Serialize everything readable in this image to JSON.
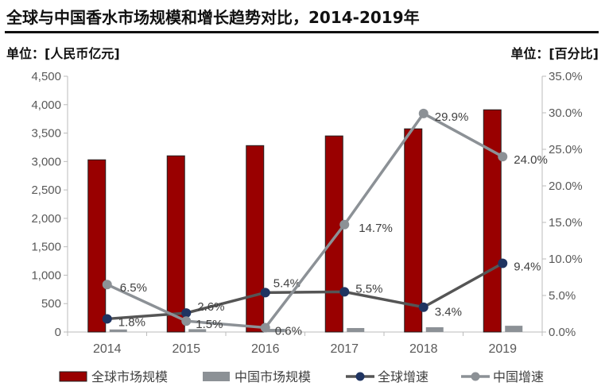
{
  "chart_data": {
    "type": "bar+line",
    "title": "全球与中国香水市场规模和增长趋势对比，2014-2019年",
    "ylabel_left": "单位：[人民币亿元]",
    "ylabel_right": "单位：[百分比]",
    "categories": [
      "2014",
      "2015",
      "2016",
      "2017",
      "2018",
      "2019"
    ],
    "ylim_left": [
      0,
      4500
    ],
    "left_ticks": [
      "0",
      "500",
      "1,000",
      "1,500",
      "2,000",
      "2,500",
      "3,000",
      "3,500",
      "4,000",
      "4,500"
    ],
    "ylim_right": [
      0,
      35
    ],
    "right_ticks": [
      "0.0%",
      "5.0%",
      "10.0%",
      "15.0%",
      "20.0%",
      "25.0%",
      "30.0%",
      "35.0%"
    ],
    "series": [
      {
        "name": "全球市场规模",
        "type": "bar",
        "axis": "left",
        "color": "#990000",
        "values": [
          3030,
          3100,
          3280,
          3450,
          3575,
          3910
        ]
      },
      {
        "name": "中国市场规模",
        "type": "bar",
        "axis": "left",
        "color": "#8c9196",
        "values": [
          45,
          50,
          55,
          70,
          84,
          110
        ]
      },
      {
        "name": "全球增速",
        "type": "line",
        "axis": "right",
        "color": "#555555",
        "marker": "#1f3461",
        "values": [
          1.8,
          2.6,
          5.4,
          5.5,
          3.4,
          9.4
        ],
        "labels": [
          "1.8%",
          "2.6%",
          "5.4%",
          "5.5%",
          "3.4%",
          "9.4%"
        ]
      },
      {
        "name": "中国增速",
        "type": "line",
        "axis": "right",
        "color": "#8c9196",
        "marker": "#8c9196",
        "values": [
          6.5,
          1.5,
          0.6,
          14.7,
          29.9,
          24.0
        ],
        "labels": [
          "6.5%",
          "1.5%",
          "0.6%",
          "14.7%",
          "29.9%",
          "24.0%"
        ]
      }
    ],
    "grid": false,
    "legend": "bottom"
  }
}
